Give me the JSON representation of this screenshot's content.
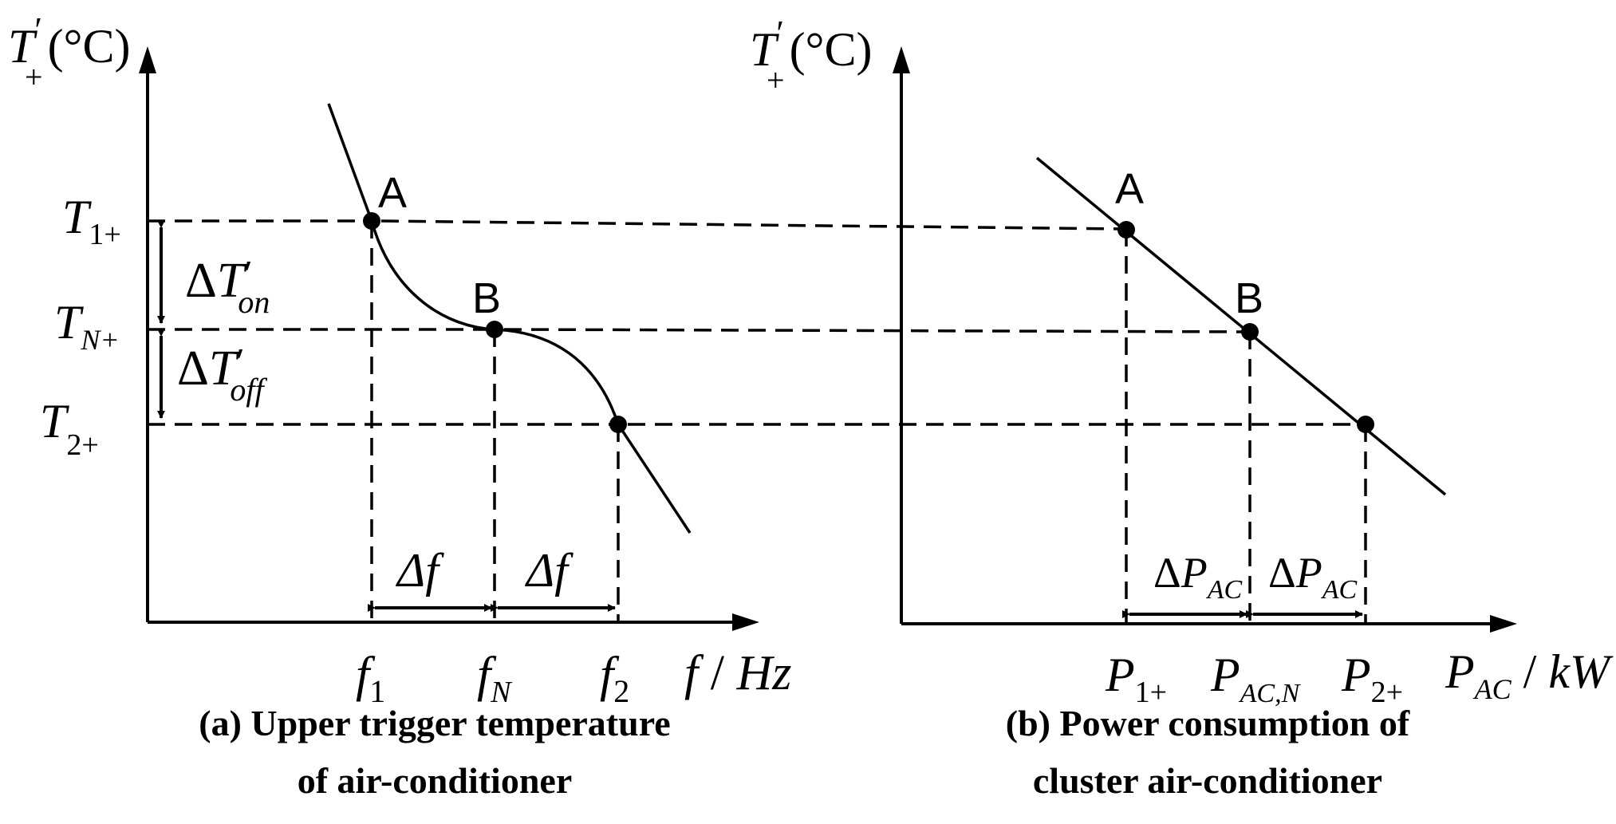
{
  "panel_a": {
    "y_axis_label": {
      "base": "T",
      "sup": "′",
      "sub": "+",
      "unit": "(°C)"
    },
    "x_axis_label": {
      "var": "f",
      "sep": " / ",
      "unit": "Hz"
    },
    "y_ticks": [
      {
        "base": "T",
        "sub": "1+"
      },
      {
        "base": "T",
        "sub": "N+"
      },
      {
        "base": "T",
        "sub": "2+"
      }
    ],
    "x_ticks": [
      {
        "base": "f",
        "sub": "1"
      },
      {
        "base": "f",
        "sub": "N"
      },
      {
        "base": "f",
        "sub": "2"
      }
    ],
    "point_labels": [
      "A",
      "B"
    ],
    "delta_on": {
      "delta": "Δ",
      "base": "T",
      "sup": "′",
      "sub": "on"
    },
    "delta_off": {
      "delta": "Δ",
      "base": "T",
      "sup": "′",
      "sub": "off"
    },
    "delta_f": [
      "Δf",
      "Δf"
    ],
    "caption_lines": [
      "(a)  Upper trigger temperature",
      "of air-conditioner"
    ]
  },
  "panel_b": {
    "y_axis_label": {
      "base": "T",
      "sup": "′",
      "sub": "+",
      "unit": "(°C)"
    },
    "x_axis_label": {
      "base": "P",
      "sub": "AC",
      "sep": " / ",
      "unit": "kW"
    },
    "x_ticks": [
      {
        "base": "P",
        "sub": "1+"
      },
      {
        "base": "P",
        "sub": "AC,N"
      },
      {
        "base": "P",
        "sub": "2+"
      }
    ],
    "point_labels": [
      "A",
      "B"
    ],
    "delta_p": [
      {
        "delta": "Δ",
        "base": "P",
        "sub": "AC"
      },
      {
        "delta": "Δ",
        "base": "P",
        "sub": "AC"
      }
    ],
    "caption_lines": [
      "(b)  Power consumption of",
      "cluster air-conditioner"
    ]
  }
}
